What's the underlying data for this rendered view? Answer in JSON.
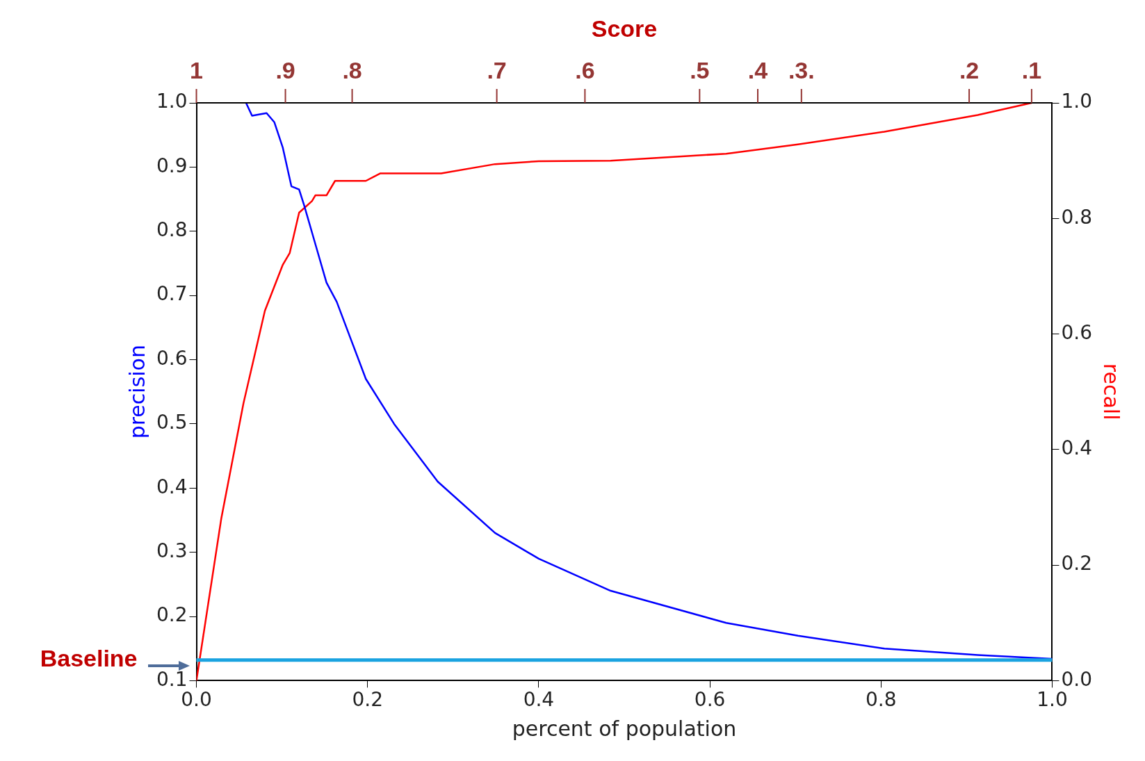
{
  "chart_data": {
    "type": "line",
    "xlabel": "percent of population",
    "ylabel": "precision",
    "y2label": "recall",
    "xlim": [
      0,
      1
    ],
    "xticks": [
      {
        "value": 0,
        "label": "0.0"
      },
      {
        "value": 0.2,
        "label": "0.2"
      },
      {
        "value": 0.4,
        "label": "0.4"
      },
      {
        "value": 0.6,
        "label": "0.6"
      },
      {
        "value": 0.8,
        "label": "0.8"
      },
      {
        "value": 1,
        "label": "1.0"
      }
    ],
    "ylim": [
      0.1,
      1
    ],
    "yticks": [
      {
        "value": 0.1,
        "label": "0.1"
      },
      {
        "value": 0.2,
        "label": "0.2"
      },
      {
        "value": 0.3,
        "label": "0.3"
      },
      {
        "value": 0.4,
        "label": "0.4"
      },
      {
        "value": 0.5,
        "label": "0.5"
      },
      {
        "value": 0.6,
        "label": "0.6"
      },
      {
        "value": 0.7,
        "label": "0.7"
      },
      {
        "value": 0.8,
        "label": "0.8"
      },
      {
        "value": 0.9,
        "label": "0.9"
      },
      {
        "value": 1,
        "label": "1.0"
      }
    ],
    "y2lim": [
      0,
      1
    ],
    "y2ticks": [
      {
        "value": 0,
        "label": "0.0"
      },
      {
        "value": 0.2,
        "label": "0.2"
      },
      {
        "value": 0.4,
        "label": "0.4"
      },
      {
        "value": 0.6,
        "label": "0.6"
      },
      {
        "value": 0.8,
        "label": "0.8"
      },
      {
        "value": 1,
        "label": "1.0"
      }
    ],
    "annotations": [
      "Score",
      "1",
      ".9",
      ".8",
      ".7",
      ".6",
      ".5",
      ".4",
      ".3.",
      ".2",
      ".1"
    ],
    "grid": false,
    "legend": false,
    "marker": "none",
    "line_style": "solid",
    "series": [
      {
        "color": "#0000ff",
        "x": [
          0.058,
          0.065,
          0.082,
          0.091,
          0.101,
          0.111,
          0.12,
          0.126,
          0.139,
          0.152,
          0.164,
          0.198,
          0.231,
          0.282,
          0.349,
          0.4,
          0.484,
          0.619,
          0.703,
          0.804,
          0.913,
          1.0
        ],
        "values": [
          1.0,
          0.98,
          0.984,
          0.97,
          0.93,
          0.87,
          0.865,
          0.84,
          0.78,
          0.72,
          0.69,
          0.57,
          0.5,
          0.41,
          0.33,
          0.29,
          0.24,
          0.19,
          0.17,
          0.15,
          0.14,
          0.134
        ]
      },
      {
        "color": "#ff0000",
        "axis": "y2",
        "x": [
          0,
          0.029,
          0.055,
          0.08,
          0.101,
          0.109,
          0.12,
          0.135,
          0.139,
          0.152,
          0.162,
          0.198,
          0.215,
          0.286,
          0.349,
          0.4,
          0.484,
          0.619,
          0.703,
          0.804,
          0.913,
          0.976
        ],
        "values": [
          0,
          0.28,
          0.48,
          0.64,
          0.72,
          0.74,
          0.81,
          0.83,
          0.84,
          0.84,
          0.865,
          0.865,
          0.878,
          0.878,
          0.894,
          0.899,
          0.9,
          0.912,
          0.928,
          0.95,
          0.979,
          1.0
        ]
      }
    ],
    "ref_lines": [
      {
        "axis": "y",
        "value": 0.132,
        "label": "Baseline",
        "color": "#1aa3e0",
        "line_style": "solid"
      }
    ]
  }
}
